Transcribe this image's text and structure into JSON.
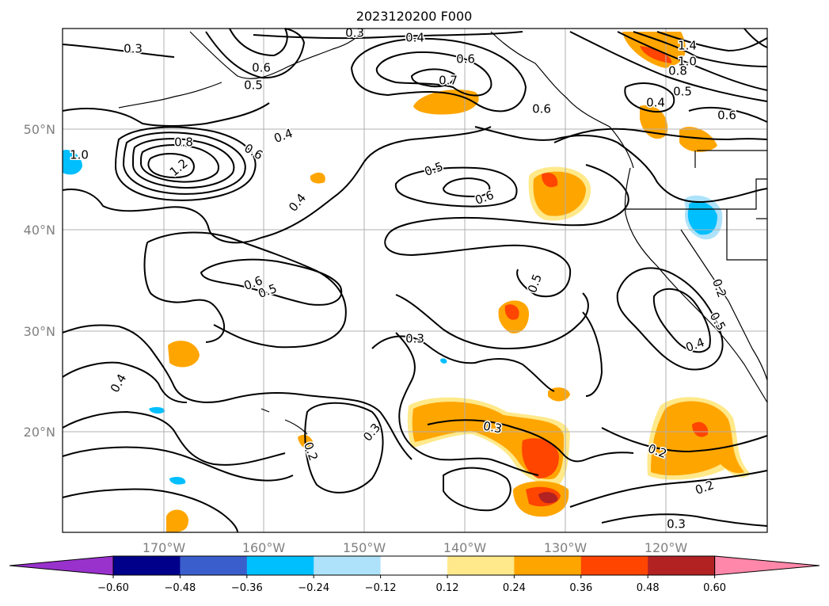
{
  "title": "2023120200 F000",
  "lon_ticks": [
    "170°W",
    "160°W",
    "150°W",
    "140°W",
    "130°W",
    "120°W"
  ],
  "lat_ticks": [
    "50°N",
    "40°N",
    "30°N",
    "20°N"
  ],
  "colorbar": {
    "ticks": [
      "−0.60",
      "−0.48",
      "−0.36",
      "−0.24",
      "−0.12",
      "0.12",
      "0.24",
      "0.36",
      "0.48",
      "0.60"
    ],
    "under_color": "#9932CC",
    "over_color": "#FF88AA",
    "colors": [
      "#00008B",
      "#3A5FCD",
      "#00BFFF",
      "#ADE2FA",
      "#FFFFFF",
      "#FFE98A",
      "#FFA500",
      "#FF4500",
      "#B22222"
    ]
  },
  "contour_labels": [
    "0.3",
    "0.4",
    "0.3",
    "0.6",
    "0.7",
    "0.6",
    "0.5",
    "0.6",
    "1.4",
    "1.0",
    "0.8",
    "0.4",
    "0.5",
    "0.6",
    "0.8",
    "1.0",
    "1.2",
    "0.6",
    "0.4",
    "0.5",
    "0.6",
    "0.4",
    "0.6",
    "0.5",
    "0.5",
    "0.3",
    "0.2",
    "0.4",
    "0.5",
    "0.4",
    "0.3",
    "0.3",
    "0.2",
    "0.2",
    "0.2",
    "0.3"
  ]
}
